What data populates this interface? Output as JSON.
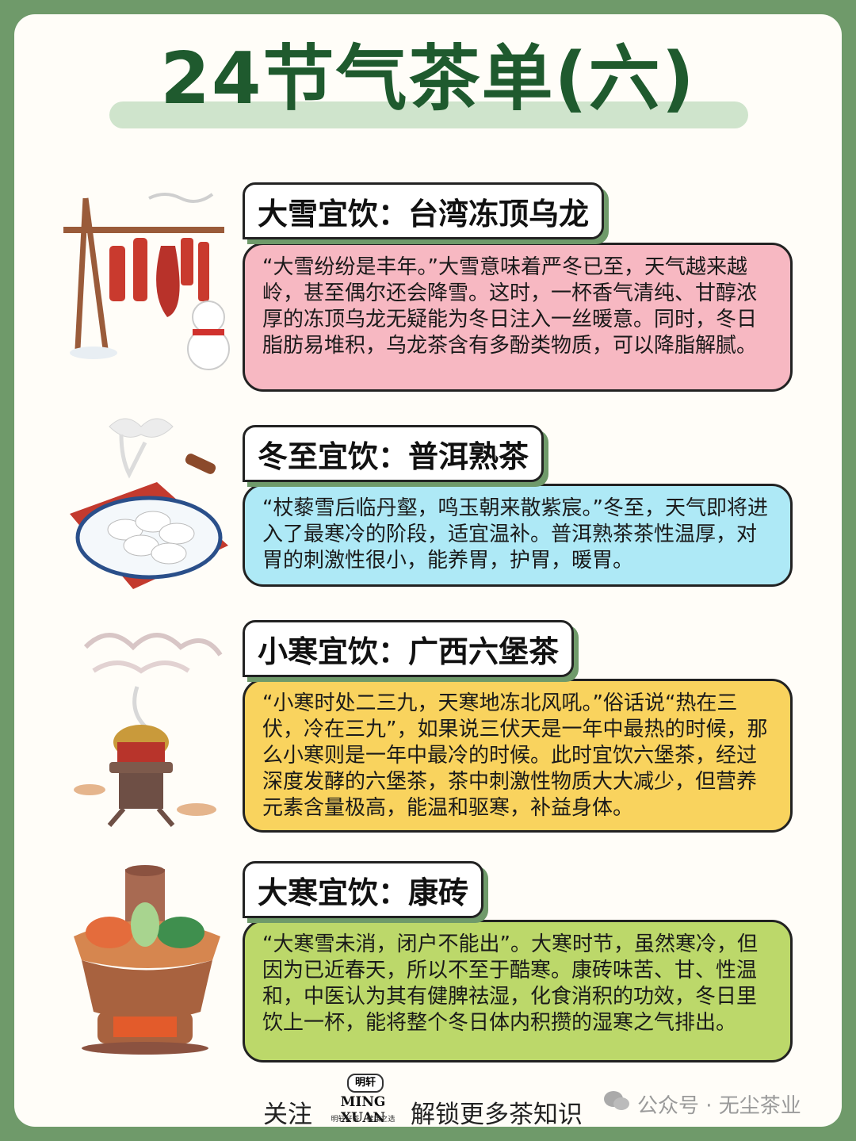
{
  "title": "24节气茶单(六)",
  "sections": [
    {
      "heading": "大雪宜饮：台湾冻顶乌龙",
      "text": "“大雪纷纷是丰年。”大雪意味着严冬已至，天气越来越岭，甚至偶尔还会降雪。这时，一杯香气清纯、甘醇浓厚的冻顶乌龙无疑能为冬日注入一丝暖意。同时，冬日脂肪易堆积，乌龙茶含有多酚类物质，可以降脂解腻。",
      "color": "#f7b8c2",
      "icon": "hanging-cured-meat-snowman-icon"
    },
    {
      "heading": "冬至宜饮：普洱熟茶",
      "text": "“杖藜雪后临丹壑，鸣玉朝来散紫宸。”冬至，天气即将进入了最寒冷的阶段，适宜温补。普洱熟茶茶性温厚，对胃的刺激性很小，能养胃，护胃，暖胃。",
      "color": "#aee9f6",
      "icon": "dumpling-plate-icon"
    },
    {
      "heading": "小寒宜饮：广西六堡茶",
      "text": "“小寒时处二三九，天寒地冻北风吼。”俗话说“热在三伏，冷在三九”，如果说三伏天是一年中最热的时候，那么小寒则是一年中最冷的时候。此时宜饮六堡茶，经过深度发酵的六堡茶，茶中刺激性物质大大减少，但营养元素含量极高，能温和驱寒，补益身体。",
      "color": "#f9d35e",
      "icon": "charcoal-stove-icon"
    },
    {
      "heading": "大寒宜饮：康砖",
      "text": "“大寒雪未消，闭户不能出”。大寒时节，虽然寒冷，但因为已近春天，所以不至于酷寒。康砖味苦、甘、性温和，中医认为其有健脾祛湿，化食消积的功效，冬日里饮上一杯，能将整个冬日体内积攒的湿寒之气排出。",
      "color": "#bcd86a",
      "icon": "hotpot-icon"
    }
  ],
  "footer": {
    "follow": "关注",
    "logo_top": "明轩",
    "logo_brand": "MING XUAN",
    "logo_sub": "明轩好茶　健康之选",
    "unlock": "解锁更多茶知识",
    "watermark": "公众号 · 无尘茶业"
  }
}
